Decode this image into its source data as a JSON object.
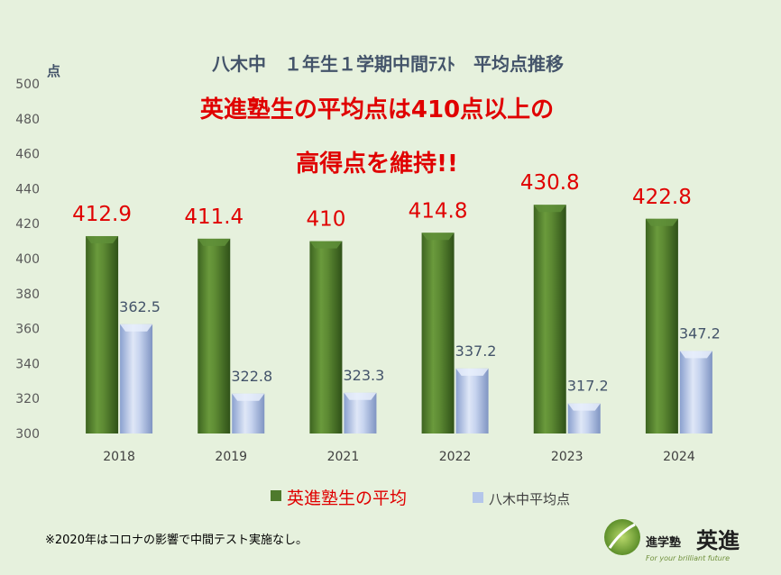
{
  "title": "八木中　１年生１学期中間ﾃｽﾄ　平均点推移",
  "headline": {
    "line1": "英進塾生の平均点は410点以上の",
    "line2": "高得点を維持!!"
  },
  "footnote": "※2020年はコロナの影響で中間テスト実施なし。",
  "logo": {
    "small_text": "進学塾",
    "big_text": "英進",
    "tagline": "For your brilliant future"
  },
  "colors": {
    "background": "#e6f1dd",
    "juku_bar": "#4e7a2c",
    "school_bar": "#b4c6ea",
    "juku_label": "#e00000",
    "school_label": "#44546a"
  },
  "chart_data": {
    "type": "bar",
    "title": "八木中　１年生１学期中間ﾃｽﾄ　平均点推移",
    "ylabel": "点",
    "xlabel": "",
    "ylim": [
      300,
      500
    ],
    "yticks": [
      300,
      320,
      340,
      360,
      380,
      400,
      420,
      440,
      460,
      480,
      500
    ],
    "grid": false,
    "legend_position": "bottom",
    "categories": [
      "2018",
      "2019",
      "2021",
      "2022",
      "2023",
      "2024"
    ],
    "series": [
      {
        "name": "英進塾生の平均",
        "values": [
          412.9,
          411.4,
          410,
          414.8,
          430.8,
          422.8
        ],
        "labels": [
          "412.9",
          "411.4",
          "410",
          "414.8",
          "430.8",
          "422.8"
        ]
      },
      {
        "name": "八木中平均点",
        "values": [
          362.5,
          322.8,
          323.3,
          337.2,
          317.2,
          347.2
        ],
        "labels": [
          "362.5",
          "322.8",
          "323.3",
          "337.2",
          "317.2",
          "347.2"
        ]
      }
    ]
  }
}
